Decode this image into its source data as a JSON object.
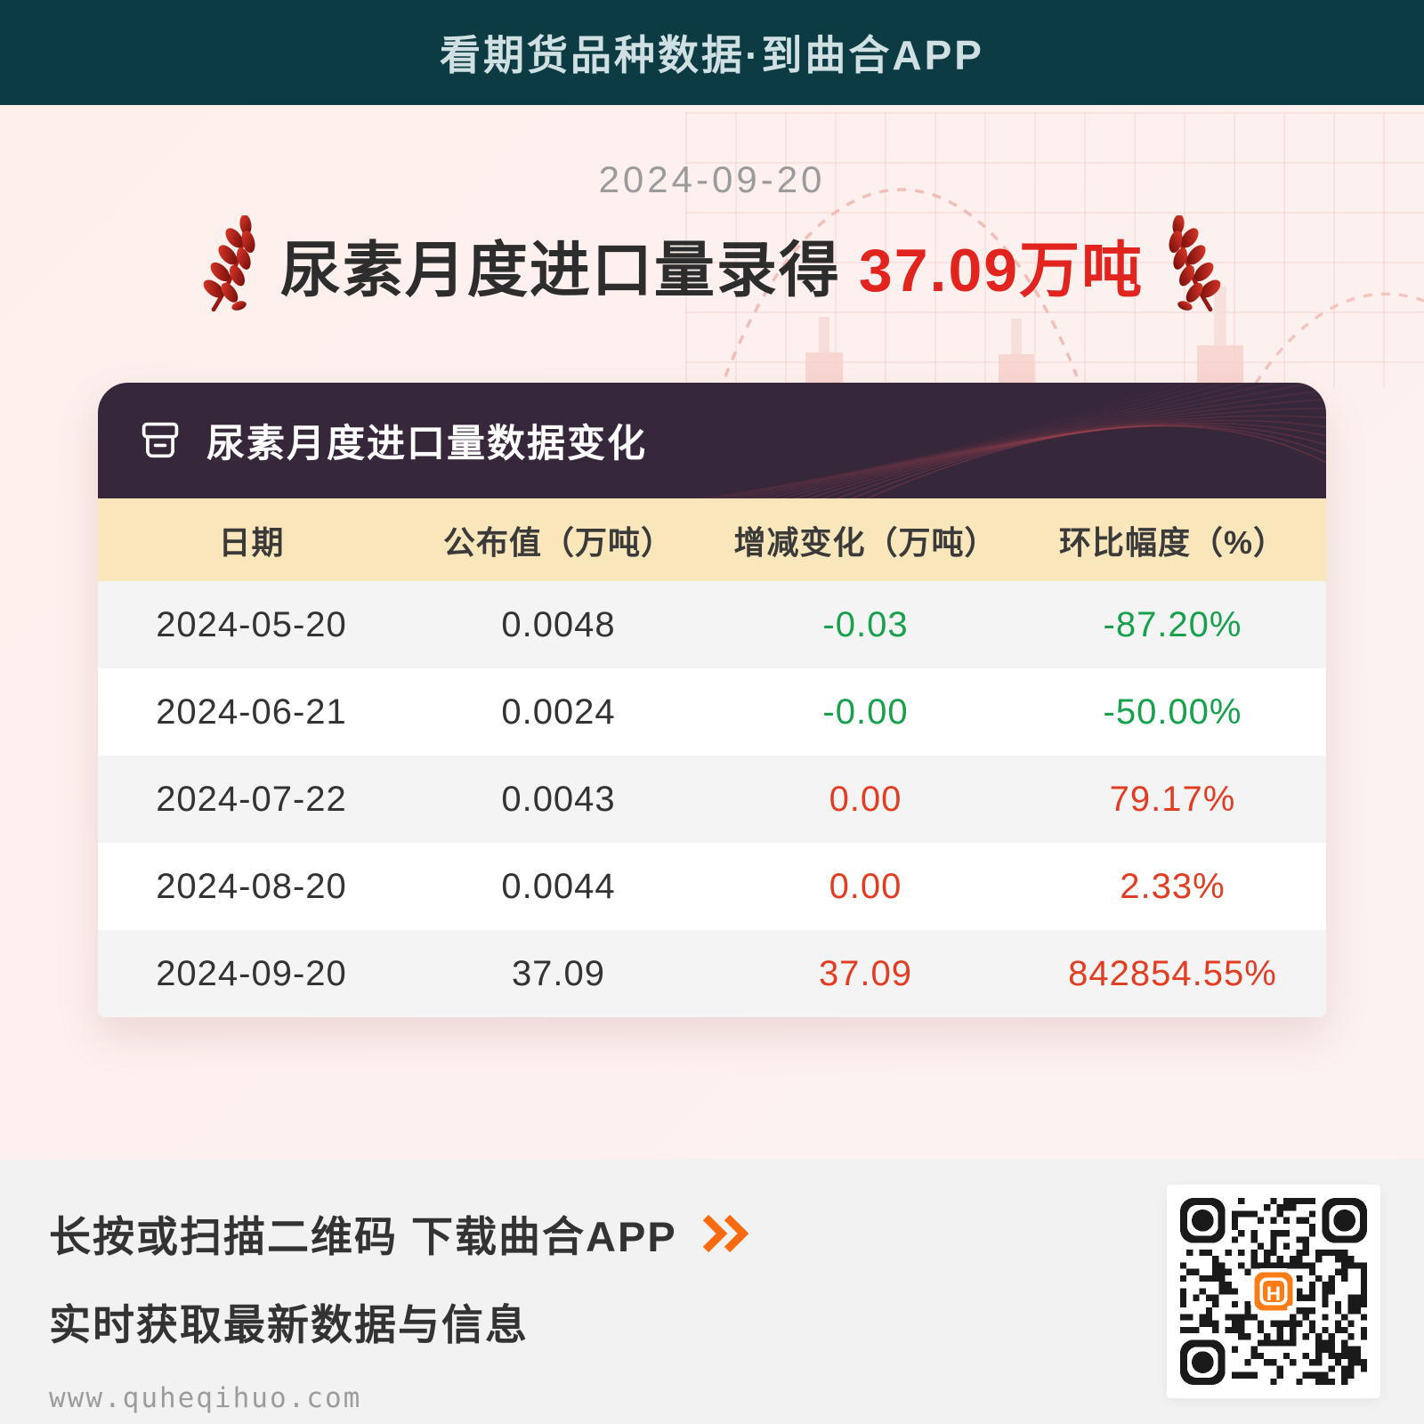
{
  "banner": {
    "title": "看期货品种数据·到曲合APP"
  },
  "hero": {
    "date": "2024-09-20",
    "title_prefix": "尿素月度进口量录得",
    "title_value": "37.09万吨"
  },
  "card": {
    "title": "尿素月度进口量数据变化",
    "table": {
      "columns": [
        "日期",
        "公布值（万吨）",
        "增减变化（万吨）",
        "环比幅度（%）"
      ],
      "rows": [
        {
          "date": "2024-05-20",
          "value": "0.0048",
          "change": "-0.03",
          "ratio": "-87.20%",
          "trend": "down"
        },
        {
          "date": "2024-06-21",
          "value": "0.0024",
          "change": "-0.00",
          "ratio": "-50.00%",
          "trend": "down"
        },
        {
          "date": "2024-07-22",
          "value": "0.0043",
          "change": "0.00",
          "ratio": "79.17%",
          "trend": "up"
        },
        {
          "date": "2024-08-20",
          "value": "0.0044",
          "change": "0.00",
          "ratio": "2.33%",
          "trend": "up"
        },
        {
          "date": "2024-09-20",
          "value": "37.09",
          "change": "37.09",
          "ratio": "842854.55%",
          "trend": "up"
        }
      ]
    }
  },
  "footer": {
    "cta": "长按或扫描二维码 下载曲合APP",
    "subtitle": "实时获取最新数据与信息",
    "url": "www.quheqihuo.com",
    "qr_logo_letter": "H"
  },
  "icons": {
    "wheat": "wheat-ear-icon",
    "archive": "archive-box-icon",
    "chevrons": "double-chevron-right-icon",
    "qr": "qr-code"
  },
  "colors": {
    "banner_bg": "#0d3b44",
    "banner_text": "#cfdfe2",
    "page_bg": "#fdf1ef",
    "headline_red": "#e2241f",
    "card_header_bg": "#36273b",
    "table_header_bg": "#fae6bb",
    "row_alt_bg": "#f5f4f4",
    "green_down": "#18a14c",
    "red_up": "#e23d22",
    "footer_bg": "#f2f2f2",
    "chevron_orange": "#fb6a10",
    "qr_logo_orange": "#f97c16"
  },
  "chart_data": {
    "type": "table",
    "title": "尿素月度进口量数据变化",
    "columns": [
      "日期",
      "公布值（万吨）",
      "增减变化（万吨）",
      "环比幅度（%）"
    ],
    "rows": [
      [
        "2024-05-20",
        "0.0048",
        "-0.03",
        "-87.20%"
      ],
      [
        "2024-06-21",
        "0.0024",
        "-0.00",
        "-50.00%"
      ],
      [
        "2024-07-22",
        "0.0043",
        "0.00",
        "79.17%"
      ],
      [
        "2024-08-20",
        "0.0044",
        "0.00",
        "2.33%"
      ],
      [
        "2024-09-20",
        "37.09",
        "37.09",
        "842854.55%"
      ]
    ],
    "latest": {
      "date": "2024-09-20",
      "value_wan_ton": 37.09
    }
  }
}
